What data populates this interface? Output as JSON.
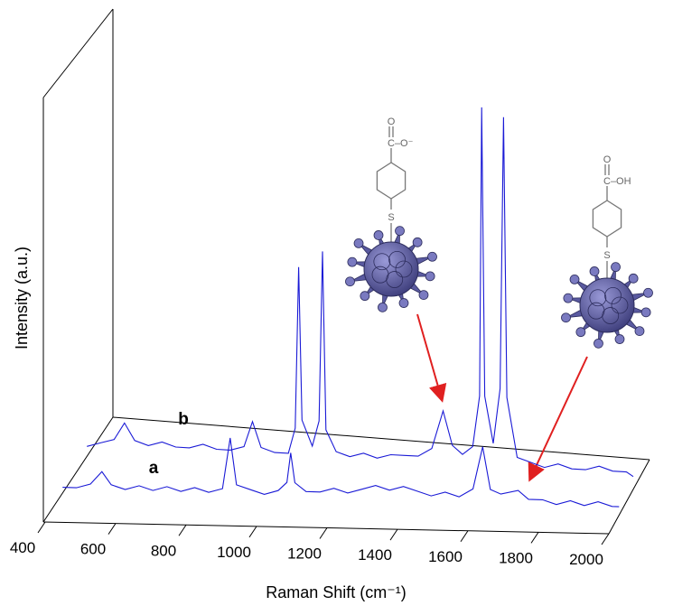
{
  "chart_data": {
    "type": "line",
    "xlabel": "Raman Shift (cm⁻¹)",
    "ylabel": "Intensity (a.u.)",
    "xlim": [
      400,
      2000
    ],
    "ylim": [
      0,
      100
    ],
    "xticks": [
      400,
      600,
      800,
      1000,
      1200,
      1400,
      1600,
      1800,
      2000
    ],
    "series": [
      {
        "name": "a",
        "color": "#1a1ad6",
        "x": [
          400,
          440,
          480,
          513,
          540,
          580,
          620,
          660,
          700,
          740,
          780,
          820,
          860,
          882,
          900,
          940,
          980,
          1020,
          1045,
          1056,
          1068,
          1100,
          1140,
          1180,
          1220,
          1260,
          1300,
          1340,
          1380,
          1420,
          1460,
          1500,
          1540,
          1580,
          1608,
          1630,
          1660,
          1710,
          1740,
          1780,
          1820,
          1860,
          1900,
          1940,
          1980,
          2000
        ],
        "values": [
          2,
          2,
          3,
          6,
          3,
          2,
          3,
          2,
          3,
          2,
          3,
          2,
          3,
          15,
          4,
          3,
          2,
          3,
          5,
          12,
          5,
          3,
          3,
          4,
          3,
          4,
          5,
          4,
          5,
          4,
          3,
          4,
          3,
          5,
          15,
          5,
          4,
          5,
          3,
          3,
          2,
          3,
          2,
          3,
          2,
          2
        ]
      },
      {
        "name": "b",
        "color": "#1a1ad6",
        "x": [
          400,
          440,
          480,
          510,
          540,
          580,
          620,
          660,
          700,
          740,
          780,
          820,
          860,
          885,
          910,
          950,
          990,
          1010,
          1020,
          1030,
          1060,
          1080,
          1090,
          1100,
          1130,
          1170,
          1210,
          1250,
          1290,
          1330,
          1370,
          1410,
          1443,
          1470,
          1500,
          1530,
          1550,
          1556,
          1565,
          1590,
          1610,
          1620,
          1630,
          1660,
          1700,
          1740,
          1780,
          1820,
          1860,
          1900,
          1940,
          1980,
          2000
        ],
        "values": [
          3,
          4,
          5,
          9,
          5,
          4,
          5,
          4,
          4,
          5,
          4,
          4,
          5,
          11,
          5,
          4,
          4,
          10,
          48,
          12,
          6,
          12,
          52,
          10,
          5,
          4,
          5,
          4,
          5,
          5,
          5,
          7,
          16,
          8,
          6,
          8,
          20,
          88,
          20,
          9,
          22,
          86,
          20,
          6,
          5,
          4,
          5,
          4,
          4,
          5,
          4,
          4,
          3
        ]
      }
    ],
    "molecules": [
      {
        "top": "O",
        "group": "C–O⁻",
        "link": "S"
      },
      {
        "top": "O",
        "group": "C–OH",
        "link": "S"
      }
    ]
  }
}
